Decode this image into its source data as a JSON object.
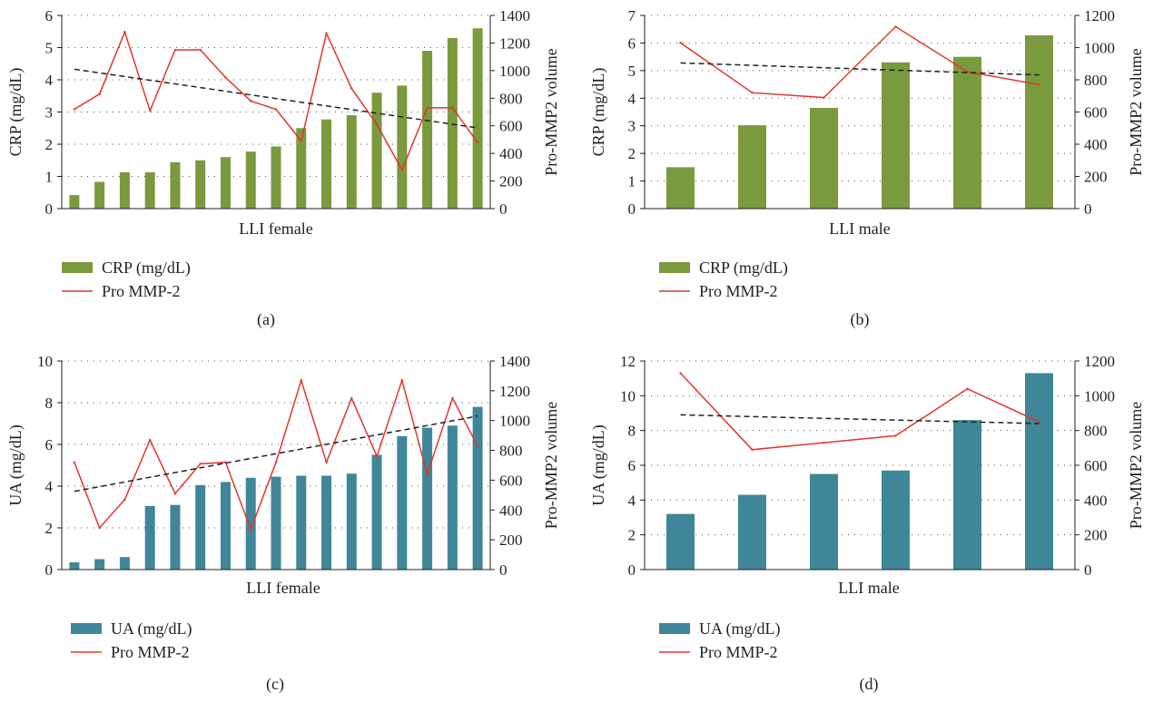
{
  "chart_data": [
    {
      "type": "bar",
      "panel_label": "(a)",
      "xlabel": "LLI female",
      "ylabel": "CRP (mg/dL)",
      "ylabel_right": "Pro-MMP2 volume",
      "ylim": [
        0,
        6
      ],
      "yticks": [
        "0",
        "1",
        "2",
        "3",
        "4",
        "5",
        "6"
      ],
      "ylim_right": [
        0,
        1400
      ],
      "yticks_right": [
        "0",
        "200",
        "400",
        "600",
        "800",
        "1000",
        "1200",
        "1400"
      ],
      "grid": "dotted",
      "legend_position": "bottom-left",
      "bar_color": "#7a9a3e",
      "line_color": "#e2352d",
      "trend_color": "#231f20",
      "series": [
        {
          "name": "CRP (mg/dL)",
          "kind": "bar",
          "axis": "left",
          "values": [
            0.42,
            0.83,
            1.13,
            1.13,
            1.44,
            1.5,
            1.6,
            1.77,
            1.93,
            2.5,
            2.77,
            2.9,
            3.6,
            3.82,
            4.9,
            5.3,
            5.6
          ]
        },
        {
          "name": "Pro MMP-2",
          "kind": "line",
          "axis": "right",
          "values": [
            720,
            830,
            1280,
            710,
            1150,
            1150,
            950,
            780,
            720,
            490,
            1270,
            870,
            610,
            280,
            730,
            730,
            480
          ]
        },
        {
          "kind": "trend",
          "axis": "right",
          "values": [
            1010,
            585
          ]
        }
      ]
    },
    {
      "type": "bar",
      "panel_label": "(b)",
      "xlabel": "LLI male",
      "ylabel": "CRP (mg/dL)",
      "ylabel_right": "Pro-MMP2 volume",
      "ylim": [
        0,
        7
      ],
      "yticks": [
        "0",
        "1",
        "2",
        "3",
        "4",
        "5",
        "6",
        "7"
      ],
      "ylim_right": [
        0,
        1200
      ],
      "yticks_right": [
        "0",
        "200",
        "400",
        "600",
        "800",
        "1000",
        "1200"
      ],
      "grid": "dotted",
      "legend_position": "bottom-left",
      "bar_color": "#7a9a3e",
      "line_color": "#e2352d",
      "trend_color": "#231f20",
      "series": [
        {
          "name": "CRP (mg/dL)",
          "kind": "bar",
          "axis": "left",
          "values": [
            1.5,
            3.02,
            3.65,
            5.3,
            5.5,
            6.28
          ]
        },
        {
          "name": "Pro MMP-2",
          "kind": "line",
          "axis": "right",
          "values": [
            1030,
            720,
            690,
            1130,
            850,
            770
          ]
        },
        {
          "kind": "trend",
          "axis": "right",
          "values": [
            905,
            830
          ]
        }
      ]
    },
    {
      "type": "bar",
      "panel_label": "(c)",
      "xlabel": "LLI female",
      "ylabel": "UA (mg/dL)",
      "ylabel_right": "Pro-MMP2 volume",
      "ylim": [
        0,
        10
      ],
      "yticks": [
        "0",
        "2",
        "4",
        "6",
        "8",
        "10"
      ],
      "ylim_right": [
        0,
        1400
      ],
      "yticks_right": [
        "0",
        "200",
        "400",
        "600",
        "800",
        "1000",
        "1200",
        "1400"
      ],
      "grid": "dotted",
      "legend_position": "bottom-left",
      "bar_color": "#3f8798",
      "line_color": "#e2352d",
      "trend_color": "#231f20",
      "series": [
        {
          "name": "UA (mg/dL)",
          "kind": "bar",
          "axis": "left",
          "values": [
            0.35,
            0.5,
            0.6,
            3.05,
            3.1,
            4.05,
            4.2,
            4.4,
            4.45,
            4.5,
            4.5,
            4.6,
            5.5,
            6.4,
            6.8,
            6.9,
            7.8
          ]
        },
        {
          "name": "Pro MMP-2",
          "kind": "line",
          "axis": "right",
          "values": [
            720,
            280,
            470,
            870,
            510,
            710,
            720,
            270,
            720,
            1270,
            720,
            1150,
            760,
            1270,
            640,
            1150,
            830
          ]
        },
        {
          "kind": "trend",
          "axis": "right",
          "values": [
            525,
            1030
          ]
        }
      ]
    },
    {
      "type": "bar",
      "panel_label": "(d)",
      "xlabel": "LLI male",
      "ylabel": "UA (mg/dL)",
      "ylabel_right": "Pro-MMP2 volume",
      "ylim": [
        0,
        12
      ],
      "yticks": [
        "0",
        "2",
        "4",
        "6",
        "8",
        "10",
        "12"
      ],
      "ylim_right": [
        0,
        1200
      ],
      "yticks_right": [
        "0",
        "200",
        "400",
        "600",
        "800",
        "1000",
        "1200"
      ],
      "grid": "dotted",
      "legend_position": "bottom-left",
      "bar_color": "#3f8798",
      "line_color": "#e2352d",
      "trend_color": "#231f20",
      "series": [
        {
          "name": "UA (mg/dL)",
          "kind": "bar",
          "axis": "left",
          "values": [
            3.2,
            4.3,
            5.5,
            5.7,
            8.6,
            11.3
          ]
        },
        {
          "name": "Pro MMP-2",
          "kind": "line",
          "axis": "right",
          "values": [
            1130,
            690,
            730,
            770,
            1040,
            850
          ]
        },
        {
          "kind": "trend",
          "axis": "right",
          "values": [
            890,
            840
          ]
        }
      ]
    }
  ]
}
